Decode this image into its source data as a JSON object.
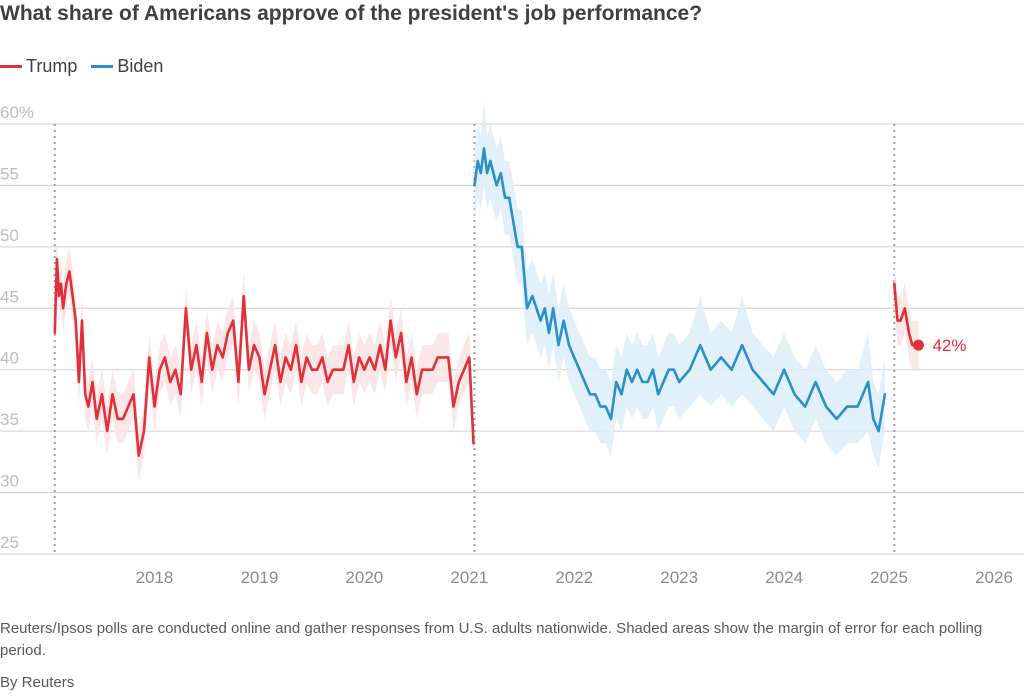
{
  "title": "What share of Americans approve of the president's job performance?",
  "footnote": "Reuters/Ipsos polls are conducted online and gather responses from U.S. adults nationwide. Shaded areas show the margin of error for each polling period.",
  "credit": "By Reuters",
  "colors": {
    "trump": "#e0303a",
    "biden": "#2b8fc9",
    "trump_band": "#fbe3e4",
    "biden_band": "#ddeef8",
    "grid": "#cfcfcf"
  },
  "chart_data": {
    "type": "line",
    "title": "What share of Americans approve of the president's job performance?",
    "ylim": [
      25,
      60
    ],
    "y_ticks": [
      25,
      30,
      35,
      40,
      45,
      50,
      55,
      60
    ],
    "y_tick_labels": [
      "25",
      "30",
      "35",
      "40",
      "45",
      "50",
      "55",
      "60%"
    ],
    "xlim": [
      2017.1,
      2026.2
    ],
    "x_ticks": [
      2018,
      2019,
      2020,
      2021,
      2022,
      2023,
      2024,
      2025,
      2026
    ],
    "x_tick_labels": [
      "2018",
      "2019",
      "2020",
      "2021",
      "2022",
      "2023",
      "2024",
      "2025",
      "2026"
    ],
    "legend_position": "top-left",
    "grid": true,
    "term_markers": [
      2017.05,
      2021.05,
      2025.05
    ],
    "end_label": "42%",
    "series": [
      {
        "name": "Trump",
        "color": "#e0303a",
        "x": [
          2017.05,
          2017.07,
          2017.09,
          2017.11,
          2017.13,
          2017.16,
          2017.19,
          2017.22,
          2017.25,
          2017.28,
          2017.31,
          2017.34,
          2017.37,
          2017.41,
          2017.45,
          2017.5,
          2017.55,
          2017.6,
          2017.65,
          2017.7,
          2017.75,
          2017.8,
          2017.85,
          2017.9,
          2017.95,
          2018.0,
          2018.05,
          2018.1,
          2018.15,
          2018.2,
          2018.25,
          2018.3,
          2018.35,
          2018.4,
          2018.45,
          2018.5,
          2018.55,
          2018.6,
          2018.65,
          2018.7,
          2018.75,
          2018.8,
          2018.85,
          2018.9,
          2018.95,
          2019.0,
          2019.05,
          2019.1,
          2019.15,
          2019.2,
          2019.25,
          2019.3,
          2019.35,
          2019.4,
          2019.45,
          2019.5,
          2019.55,
          2019.6,
          2019.65,
          2019.7,
          2019.75,
          2019.8,
          2019.85,
          2019.9,
          2019.95,
          2020.0,
          2020.05,
          2020.1,
          2020.15,
          2020.2,
          2020.25,
          2020.3,
          2020.35,
          2020.4,
          2020.45,
          2020.5,
          2020.55,
          2020.6,
          2020.65,
          2020.7,
          2020.75,
          2020.8,
          2020.85,
          2020.9,
          2020.95,
          2021.0,
          2021.04,
          2025.05,
          2025.08,
          2025.11,
          2025.15,
          2025.19,
          2025.22,
          2025.25,
          2025.28
        ],
        "values": [
          43,
          49,
          46,
          47,
          45,
          47,
          48,
          46,
          44,
          39,
          44,
          38,
          37,
          39,
          36,
          38,
          35,
          38,
          36,
          36,
          37,
          38,
          33,
          35,
          41,
          37,
          40,
          41,
          39,
          40,
          38,
          45,
          40,
          42,
          39,
          43,
          40,
          42,
          41,
          43,
          44,
          39,
          46,
          40,
          42,
          41,
          38,
          40,
          42,
          39,
          41,
          40,
          42,
          39,
          41,
          40,
          40,
          41,
          39,
          40,
          40,
          40,
          42,
          39,
          41,
          40,
          41,
          40,
          42,
          40,
          44,
          41,
          43,
          39,
          41,
          38,
          40,
          40,
          40,
          41,
          41,
          41,
          37,
          39,
          40,
          41,
          34,
          47,
          44,
          44,
          45,
          43,
          42,
          42,
          42
        ],
        "lower": [
          42,
          47,
          44,
          45,
          43,
          45,
          46,
          44,
          42,
          37,
          42,
          36,
          35,
          37,
          34,
          36,
          33,
          36,
          34,
          34,
          35,
          36,
          31,
          33,
          39,
          35,
          38,
          39,
          37,
          38,
          36,
          43,
          38,
          40,
          37,
          41,
          38,
          40,
          39,
          41,
          42,
          37,
          44,
          38,
          40,
          39,
          36,
          38,
          40,
          37,
          39,
          38,
          40,
          37,
          39,
          38,
          38,
          39,
          37,
          38,
          38,
          38,
          40,
          37,
          39,
          38,
          39,
          38,
          40,
          38,
          42,
          39,
          41,
          37,
          39,
          36,
          38,
          38,
          38,
          39,
          39,
          39,
          35,
          37,
          38,
          39,
          33,
          45,
          42,
          42,
          43,
          41,
          40,
          40,
          40
        ],
        "upper": [
          45,
          51,
          48,
          49,
          47,
          49,
          50,
          48,
          46,
          41,
          46,
          40,
          39,
          41,
          38,
          40,
          37,
          40,
          38,
          38,
          39,
          40,
          35,
          37,
          43,
          39,
          42,
          43,
          41,
          42,
          40,
          47,
          42,
          44,
          41,
          45,
          42,
          44,
          43,
          45,
          46,
          41,
          48,
          42,
          44,
          43,
          40,
          42,
          44,
          41,
          43,
          42,
          44,
          41,
          43,
          42,
          42,
          43,
          41,
          42,
          42,
          42,
          44,
          41,
          43,
          42,
          43,
          42,
          44,
          42,
          46,
          43,
          45,
          41,
          43,
          40,
          42,
          42,
          42,
          43,
          43,
          43,
          39,
          41,
          42,
          43,
          36,
          49,
          46,
          46,
          47,
          45,
          44,
          44,
          44
        ]
      },
      {
        "name": "Biden",
        "color": "#2b8fc9",
        "x": [
          2021.05,
          2021.08,
          2021.11,
          2021.14,
          2021.17,
          2021.2,
          2021.23,
          2021.26,
          2021.3,
          2021.34,
          2021.38,
          2021.42,
          2021.46,
          2021.5,
          2021.55,
          2021.6,
          2021.64,
          2021.68,
          2021.72,
          2021.76,
          2021.8,
          2021.85,
          2021.9,
          2021.95,
          2022.0,
          2022.05,
          2022.1,
          2022.15,
          2022.2,
          2022.25,
          2022.3,
          2022.35,
          2022.4,
          2022.45,
          2022.5,
          2022.55,
          2022.6,
          2022.65,
          2022.7,
          2022.75,
          2022.8,
          2022.85,
          2022.9,
          2022.95,
          2023.0,
          2023.1,
          2023.2,
          2023.3,
          2023.4,
          2023.5,
          2023.6,
          2023.7,
          2023.8,
          2023.9,
          2024.0,
          2024.1,
          2024.2,
          2024.3,
          2024.4,
          2024.5,
          2024.6,
          2024.7,
          2024.8,
          2024.85,
          2024.9,
          2024.96
        ],
        "values": [
          55,
          57,
          56,
          58,
          56,
          57,
          56,
          55,
          56,
          54,
          54,
          52,
          50,
          50,
          45,
          46,
          45,
          44,
          45,
          43,
          45,
          42,
          44,
          42,
          41,
          40,
          39,
          38,
          38,
          37,
          37,
          36,
          39,
          38,
          40,
          39,
          40,
          39,
          39,
          40,
          38,
          39,
          40,
          40,
          39,
          40,
          42,
          40,
          41,
          40,
          42,
          40,
          39,
          38,
          40,
          38,
          37,
          39,
          37,
          36,
          37,
          37,
          39,
          36,
          35,
          38
        ],
        "lower": [
          52,
          54,
          53,
          55,
          53,
          54,
          53,
          52,
          53,
          51,
          51,
          49,
          47,
          47,
          42,
          43,
          42,
          41,
          42,
          40,
          42,
          39,
          41,
          39,
          38,
          37,
          36,
          35,
          35,
          34,
          34,
          33,
          36,
          35,
          37,
          36,
          37,
          36,
          36,
          37,
          35,
          36,
          37,
          37,
          36,
          37,
          38,
          37,
          38,
          37,
          38,
          37,
          36,
          35,
          37,
          35,
          34,
          36,
          34,
          33,
          34,
          34,
          35,
          33,
          32,
          35
        ],
        "upper": [
          58,
          60,
          59,
          62,
          59,
          60,
          59,
          58,
          59,
          57,
          57,
          55,
          53,
          53,
          48,
          49,
          48,
          47,
          48,
          46,
          48,
          45,
          47,
          45,
          44,
          43,
          42,
          41,
          41,
          40,
          40,
          39,
          42,
          41,
          43,
          42,
          43,
          42,
          42,
          43,
          41,
          42,
          43,
          43,
          42,
          43,
          46,
          43,
          44,
          43,
          46,
          43,
          42,
          41,
          43,
          41,
          40,
          42,
          40,
          39,
          40,
          40,
          43,
          39,
          38,
          41
        ]
      }
    ]
  }
}
